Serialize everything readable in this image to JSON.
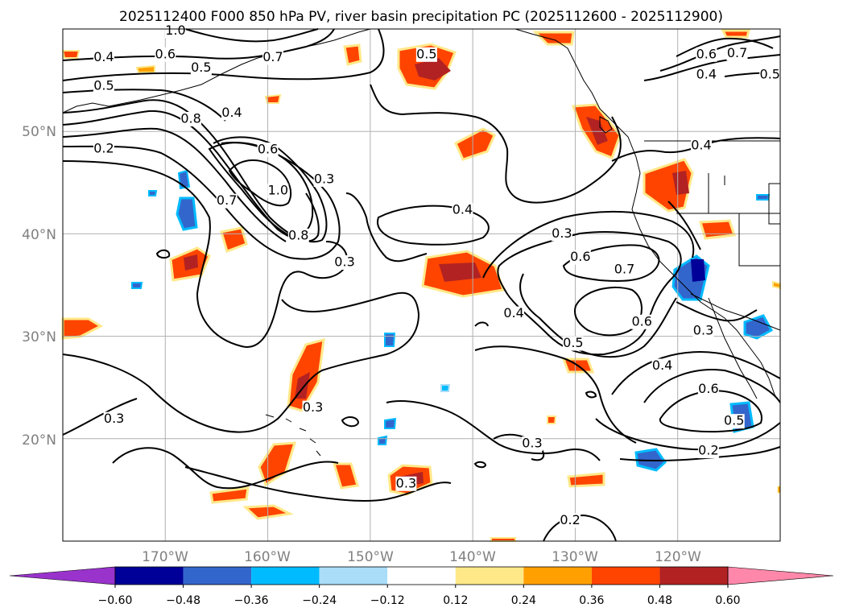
{
  "title": "2025112400 F000 850 hPa PV, river basin precipitation PC (2025112600 - 2025112900)",
  "map": {
    "lat_labels": [
      "50°N",
      "40°N",
      "30°N",
      "20°N"
    ],
    "lon_labels": [
      "170°W",
      "160°W",
      "150°W",
      "140°W",
      "130°W",
      "120°W"
    ],
    "extent": {
      "lon_min": -180,
      "lon_max": -110,
      "lat_min": 10,
      "lat_max": 60
    }
  },
  "colorbar": {
    "ticks": [
      "−0.60",
      "−0.48",
      "−0.36",
      "−0.24",
      "−0.12",
      "0.12",
      "0.24",
      "0.36",
      "0.48",
      "0.60"
    ],
    "colors": [
      "#9933cc",
      "#000099",
      "#3366cc",
      "#00bbff",
      "#aaddf8",
      "#ffffff",
      "#ffe888",
      "#ffa000",
      "#ff4400",
      "#b22222",
      "#ff88aa"
    ],
    "extend": "both"
  },
  "contour_labels": [
    {
      "text": "1.0",
      "lon": -169,
      "lat": 59.8
    },
    {
      "text": "0.4",
      "lon": -176,
      "lat": 57.2
    },
    {
      "text": "0.6",
      "lon": -170,
      "lat": 57.5
    },
    {
      "text": "0.5",
      "lon": -166.5,
      "lat": 56.2
    },
    {
      "text": "0.7",
      "lon": -159.5,
      "lat": 57.2
    },
    {
      "text": "0.5",
      "lon": -176,
      "lat": 54.4
    },
    {
      "text": "0.8",
      "lon": -167.5,
      "lat": 51.2
    },
    {
      "text": "0.4",
      "lon": -163.5,
      "lat": 51.8
    },
    {
      "text": "0.2",
      "lon": -176,
      "lat": 48.3
    },
    {
      "text": "0.6",
      "lon": -160,
      "lat": 48.2
    },
    {
      "text": "0.3",
      "lon": -154.5,
      "lat": 45.3
    },
    {
      "text": "1.0",
      "lon": -159,
      "lat": 44.2
    },
    {
      "text": "0.7",
      "lon": -164,
      "lat": 43.2
    },
    {
      "text": "0.8",
      "lon": -157,
      "lat": 39.8
    },
    {
      "text": "0.3",
      "lon": -152.5,
      "lat": 37.2
    },
    {
      "text": "0.5",
      "lon": -144.5,
      "lat": 57.5
    },
    {
      "text": "0.4",
      "lon": -141,
      "lat": 42.3
    },
    {
      "text": "0.3",
      "lon": -131.3,
      "lat": 40.0
    },
    {
      "text": "0.6",
      "lon": -129.5,
      "lat": 37.7
    },
    {
      "text": "0.7",
      "lon": -125.2,
      "lat": 36.5
    },
    {
      "text": "0.4",
      "lon": -136,
      "lat": 32.2
    },
    {
      "text": "0.5",
      "lon": -130.2,
      "lat": 29.3
    },
    {
      "text": "0.6",
      "lon": -123.5,
      "lat": 31.4
    },
    {
      "text": "0.3",
      "lon": -117.5,
      "lat": 30.5
    },
    {
      "text": "0.4",
      "lon": -121.5,
      "lat": 27.1
    },
    {
      "text": "0.6",
      "lon": -117,
      "lat": 24.8
    },
    {
      "text": "0.5",
      "lon": -114.5,
      "lat": 21.7
    },
    {
      "text": "0.2",
      "lon": -117,
      "lat": 18.8
    },
    {
      "text": "0.3",
      "lon": -175,
      "lat": 21.9
    },
    {
      "text": "0.3",
      "lon": -155.6,
      "lat": 23.0
    },
    {
      "text": "0.3",
      "lon": -134.2,
      "lat": 19.5
    },
    {
      "text": "0.3",
      "lon": -146.5,
      "lat": 15.6
    },
    {
      "text": "0.2",
      "lon": -130.5,
      "lat": 12.0
    },
    {
      "text": "0.7",
      "lon": -114.2,
      "lat": 57.6
    },
    {
      "text": "0.6",
      "lon": -117.2,
      "lat": 57.5
    },
    {
      "text": "0.4",
      "lon": -117.2,
      "lat": 55.5
    },
    {
      "text": "0.5",
      "lon": -111,
      "lat": 55.5
    },
    {
      "text": "0.4",
      "lon": -117.7,
      "lat": 48.6
    }
  ]
}
